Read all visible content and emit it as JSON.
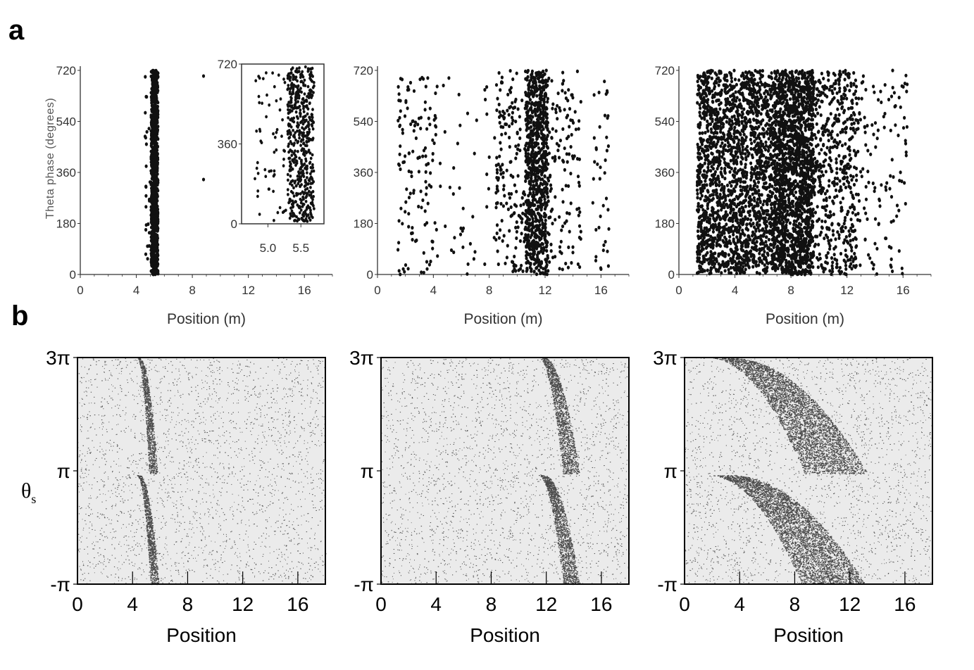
{
  "figure": {
    "panel_a_letter": "a",
    "panel_b_letter": "b"
  },
  "chart_data": [
    {
      "id": "a1",
      "panel": "a",
      "type": "scatter",
      "title": "",
      "xlabel": "Position (m)",
      "ylabel": "Theta phase (degrees)",
      "xlim": [
        0,
        18
      ],
      "ylim": [
        0,
        720
      ],
      "xticks": [
        "0",
        "4",
        "8",
        "12",
        "16"
      ],
      "yticks": [
        "0",
        "180",
        "360",
        "540",
        "720"
      ],
      "clusters": [
        {
          "x_min": 5.05,
          "x_max": 5.55,
          "count": 900
        },
        {
          "x_min": 4.6,
          "x_max": 5.0,
          "count": 25
        }
      ],
      "outliers": [
        {
          "x": 8.8,
          "y": 700
        },
        {
          "x": 8.8,
          "y": 335
        }
      ],
      "inset": {
        "xlim": [
          4.6,
          5.85
        ],
        "ylim": [
          0,
          720
        ],
        "xticks": [
          "5.0",
          "5.5"
        ],
        "yticks": [
          "0",
          "360",
          "720"
        ],
        "clusters": [
          {
            "x_min": 5.3,
            "x_max": 5.7,
            "count": 520
          },
          {
            "x_min": 4.8,
            "x_max": 5.3,
            "count": 60
          }
        ]
      }
    },
    {
      "id": "a2",
      "panel": "a",
      "type": "scatter",
      "title": "",
      "xlabel": "Position (m)",
      "ylabel": "",
      "xlim": [
        0,
        18
      ],
      "ylim": [
        0,
        720
      ],
      "xticks": [
        "0",
        "4",
        "8",
        "12",
        "16"
      ],
      "yticks": [
        "0",
        "180",
        "360",
        "540",
        "720"
      ],
      "clusters": [
        {
          "x_min": 10.6,
          "x_max": 12.2,
          "count": 800
        },
        {
          "x_min": 8.4,
          "x_max": 10.6,
          "count": 170
        },
        {
          "x_min": 12.2,
          "x_max": 14.6,
          "count": 130
        },
        {
          "x_min": 1.4,
          "x_max": 4.2,
          "count": 130
        },
        {
          "x_min": 4.2,
          "x_max": 8.4,
          "count": 45
        },
        {
          "x_min": 15.4,
          "x_max": 16.6,
          "count": 40
        }
      ]
    },
    {
      "id": "a3",
      "panel": "a",
      "type": "scatter",
      "title": "",
      "xlabel": "Position (m)",
      "ylabel": "",
      "xlim": [
        0,
        18
      ],
      "ylim": [
        0,
        720
      ],
      "xticks": [
        "0",
        "4",
        "8",
        "12",
        "16"
      ],
      "yticks": [
        "0",
        "180",
        "360",
        "540",
        "720"
      ],
      "clusters": [
        {
          "x_min": 6.8,
          "x_max": 9.6,
          "count": 1700
        },
        {
          "x_min": 1.3,
          "x_max": 6.8,
          "count": 2000
        },
        {
          "x_min": 9.6,
          "x_max": 12.8,
          "count": 520
        },
        {
          "x_min": 12.8,
          "x_max": 16.3,
          "count": 120
        }
      ]
    },
    {
      "id": "b1",
      "panel": "b",
      "type": "scatter",
      "title": "",
      "xlabel": "Position",
      "ylabel": "θs",
      "xlim": [
        0,
        18
      ],
      "xticks": [
        "0",
        "4",
        "8",
        "12",
        "16"
      ],
      "yticks": [
        "-π",
        "π",
        "3π"
      ],
      "bands": [
        {
          "x_top": 4.4,
          "x_bottom": 5.5,
          "half_width": 0.3
        },
        {
          "x_top": 4.4,
          "x_bottom": 5.6,
          "half_width": 0.3
        }
      ]
    },
    {
      "id": "b2",
      "panel": "b",
      "type": "scatter",
      "title": "",
      "xlabel": "Position",
      "ylabel": "",
      "xlim": [
        0,
        18
      ],
      "xticks": [
        "0",
        "4",
        "8",
        "12",
        "16"
      ],
      "yticks": [
        "-π",
        "π",
        "3π"
      ],
      "bands": [
        {
          "x_top": 11.6,
          "x_bottom": 13.8,
          "half_width": 0.6
        },
        {
          "x_top": 11.6,
          "x_bottom": 13.8,
          "half_width": 0.6
        }
      ]
    },
    {
      "id": "b3",
      "panel": "b",
      "type": "scatter",
      "title": "",
      "xlabel": "Position",
      "ylabel": "",
      "xlim": [
        0,
        18
      ],
      "xticks": [
        "0",
        "4",
        "8",
        "12",
        "16"
      ],
      "yticks": [
        "-π",
        "π",
        "3π"
      ],
      "bands": [
        {
          "x_top": 2.5,
          "x_bottom": 11.0,
          "half_width": 2.3
        },
        {
          "x_top": 2.5,
          "x_bottom": 10.8,
          "half_width": 2.3
        }
      ]
    }
  ]
}
